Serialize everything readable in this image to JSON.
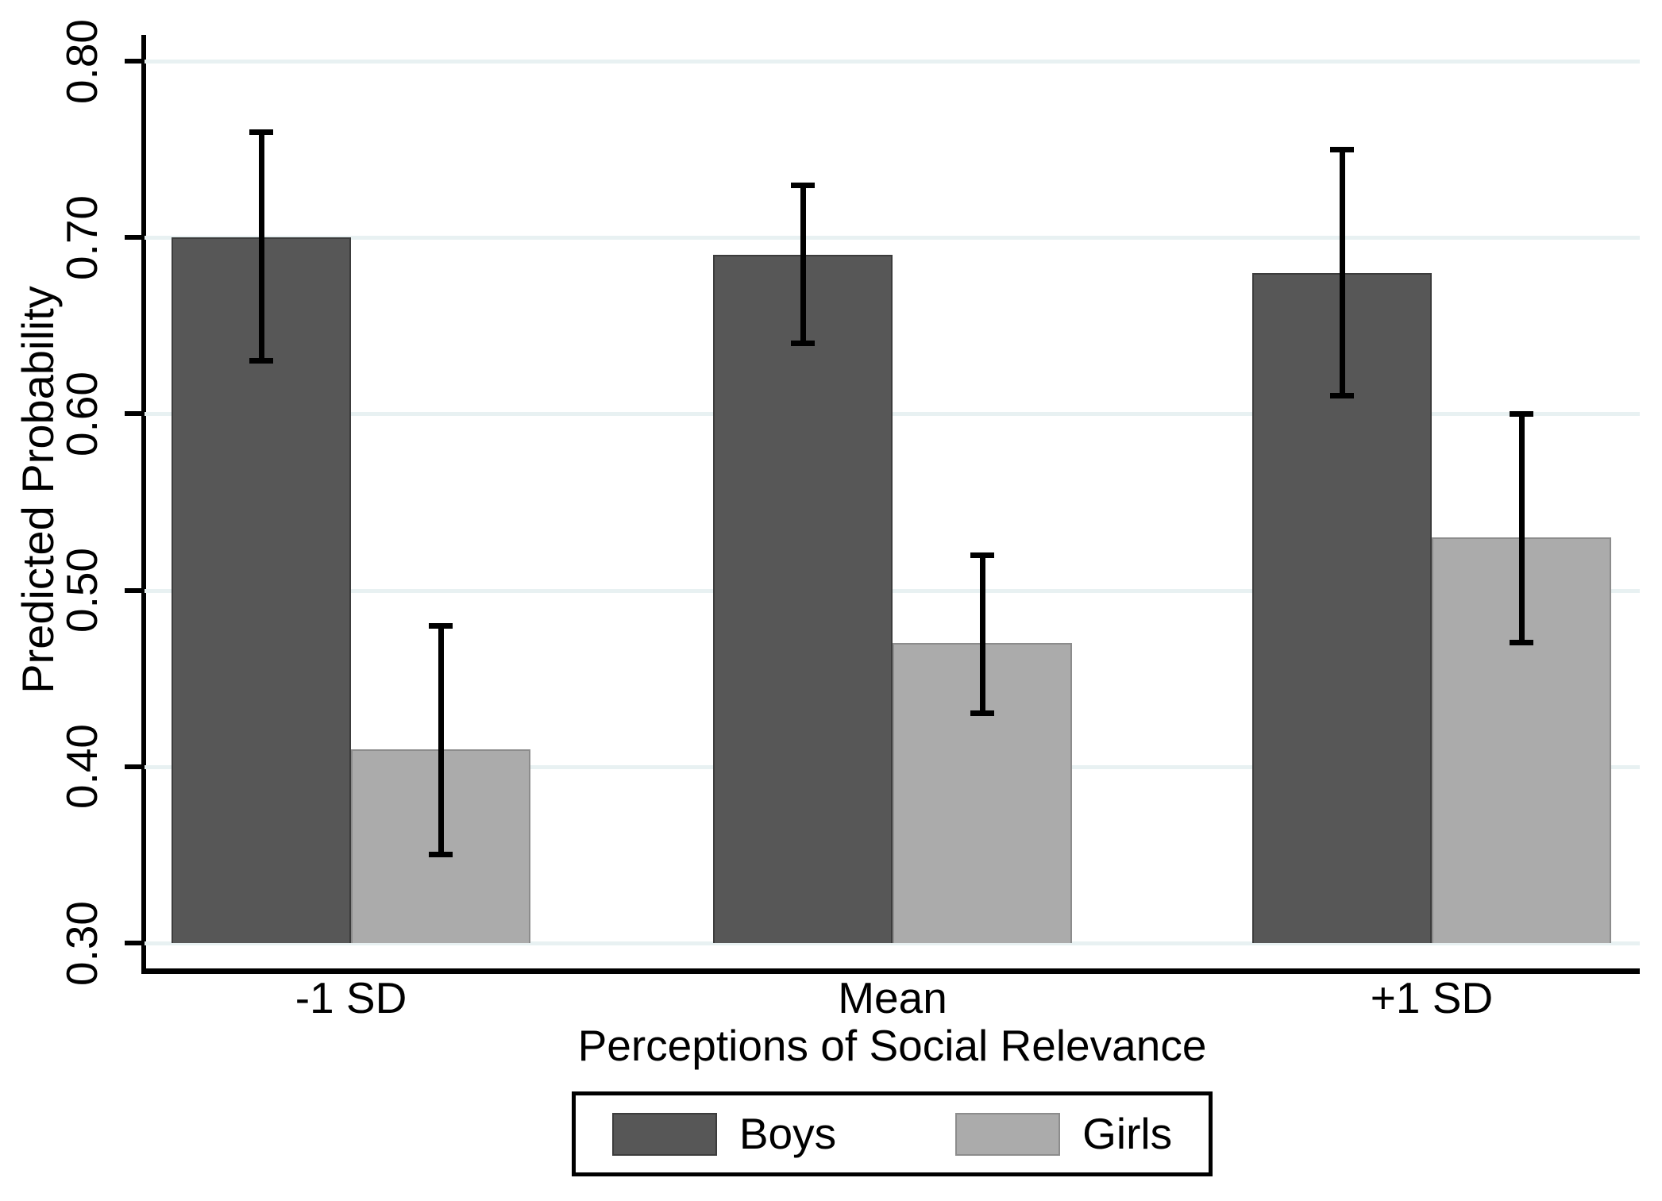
{
  "chart_data": {
    "type": "bar",
    "title": "",
    "categories": [
      "-1 SD",
      "Mean",
      "+1 SD"
    ],
    "series": [
      {
        "name": "Boys",
        "color": "#575757",
        "border_color": "#3c3c3c",
        "values": [
          0.7,
          0.69,
          0.68
        ],
        "ci_low": [
          0.63,
          0.64,
          0.61
        ],
        "ci_high": [
          0.76,
          0.73,
          0.75
        ]
      },
      {
        "name": "Girls",
        "color": "#ababab",
        "border_color": "#8c8c8c",
        "values": [
          0.41,
          0.47,
          0.53
        ],
        "ci_low": [
          0.35,
          0.43,
          0.47
        ],
        "ci_high": [
          0.48,
          0.52,
          0.6
        ]
      }
    ],
    "xlabel": "Perceptions of Social Relevance",
    "ylabel": "Predicted Probability",
    "ylim": [
      0.3,
      0.8
    ],
    "yticks": [
      0.3,
      0.4,
      0.5,
      0.6,
      0.7,
      0.8
    ],
    "ytick_labels": [
      "0.30",
      "0.40",
      "0.50",
      "0.60",
      "0.70",
      "0.80"
    ],
    "grid": true,
    "gridline_color": "#e8f1f2",
    "axis_color": "#000000",
    "error_bars": true,
    "error_bar_color": "#000000",
    "legend_position": "bottom",
    "legend_entries": [
      "Boys",
      "Girls"
    ],
    "background": "#ffffff"
  }
}
